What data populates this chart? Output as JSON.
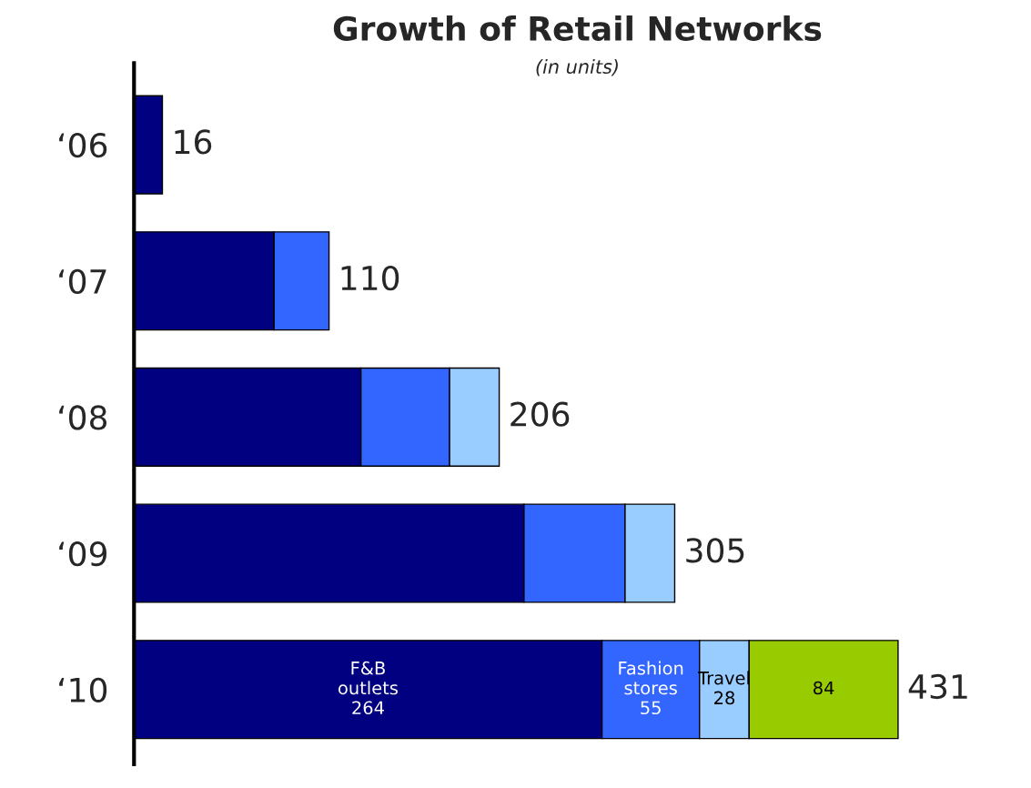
{
  "chart_data": {
    "type": "bar",
    "orientation": "horizontal",
    "stacked": true,
    "title": "Growth of Retail Networks",
    "subtitle": "(in units)",
    "categories": [
      "‘06",
      "‘07",
      "‘08",
      "‘09",
      "‘10"
    ],
    "series": [
      {
        "name": "F&B outlets",
        "color": "#000080",
        "values": [
          16,
          79,
          128,
          220,
          264
        ],
        "value_labels": [
          null,
          null,
          null,
          null,
          "264"
        ]
      },
      {
        "name": "Fashion stores",
        "color": "#3366ff",
        "values": [
          null,
          31,
          50,
          57,
          55
        ],
        "value_labels": [
          null,
          null,
          null,
          null,
          "55"
        ]
      },
      {
        "name": "Travel",
        "color": "#99ccff",
        "values": [
          null,
          null,
          28,
          28,
          28
        ],
        "value_labels": [
          null,
          null,
          null,
          null,
          "28"
        ]
      },
      {
        "color": "#99cc00",
        "values": [
          null,
          null,
          null,
          null,
          84
        ],
        "value_labels": [
          null,
          null,
          null,
          null,
          "84"
        ]
      }
    ],
    "totals": [
      "16",
      "110",
      "206",
      "305",
      "431"
    ],
    "grid": false,
    "legend": false
  }
}
